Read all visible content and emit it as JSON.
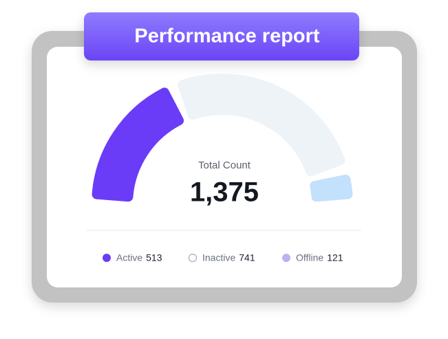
{
  "chart_data": {
    "type": "gauge",
    "title": "Performance report",
    "center_label": "Total Count",
    "total": {
      "value": 1375,
      "label": "1,375"
    },
    "categories": [
      "Active",
      "Inactive",
      "Offline"
    ],
    "values": [
      513,
      741,
      121
    ],
    "colors": [
      "#6a3cf7",
      "#eef3f8",
      "#c3e0fc"
    ],
    "legend_colors": [
      "#6a3cf7",
      "#ffffff",
      "#b9b3f2"
    ]
  }
}
